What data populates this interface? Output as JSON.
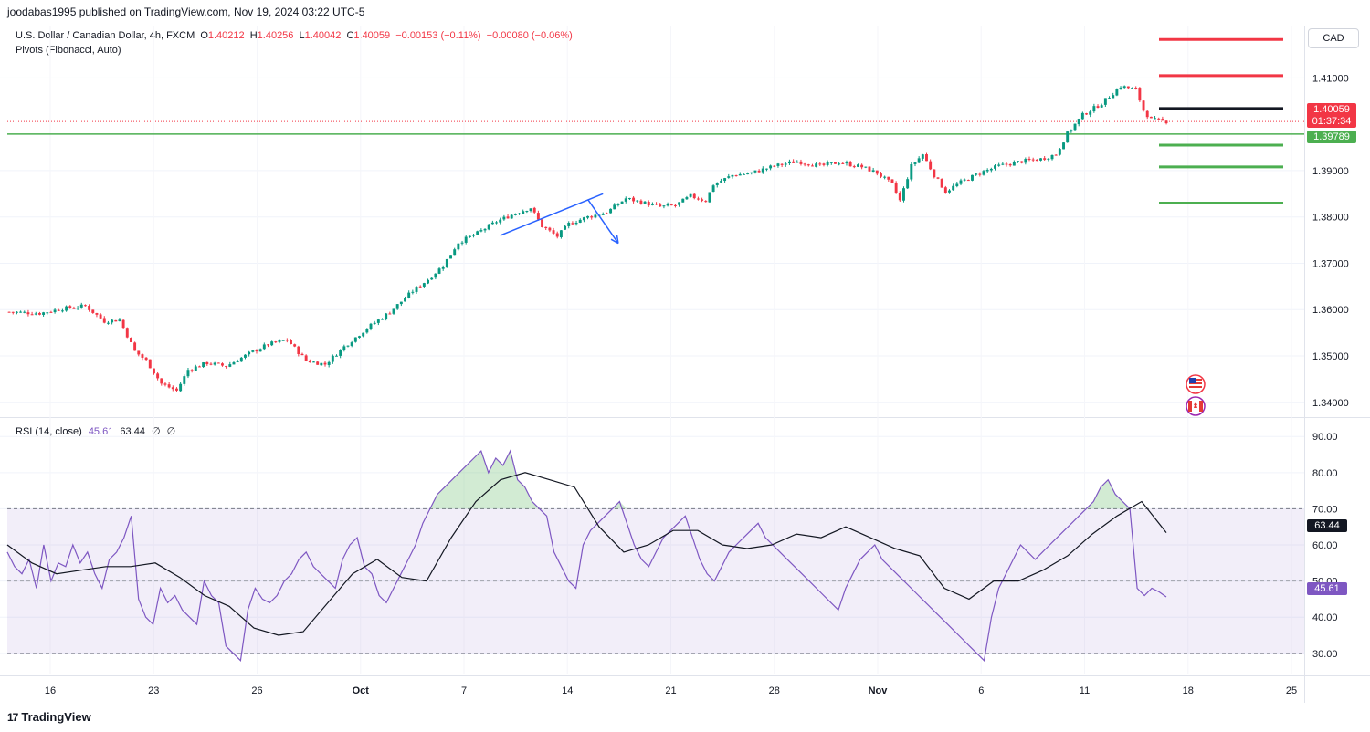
{
  "header": {
    "published_line": "joodabas1995 published on TradingView.com, Nov 19, 2024 03:22 UTC-5"
  },
  "legend": {
    "symbol": "U.S. Dollar / Canadian Dollar, 4h, FXCM",
    "o_label": "O",
    "o_value": "1.40212",
    "h_label": "H",
    "h_value": "1.40256",
    "l_label": "L",
    "l_value": "1.40042",
    "c_label": "C",
    "c_value": "1.40059",
    "change": "−0.00153 (−0.11%)",
    "change2": "−0.00080 (−0.06%)",
    "pivots_label": "Pivots (Fibonacci, Auto)",
    "rsi_label": "RSI (14, close)",
    "rsi_value": "45.61",
    "rsi_ma_value": "63.44",
    "rsi_extra1": "∅",
    "rsi_extra2": "∅"
  },
  "currency_button": "CAD",
  "price_tags": {
    "last_price": "1.40059",
    "countdown": "01:37:34",
    "green_line": "1.39789",
    "rsi_ma": "63.44",
    "rsi": "45.61"
  },
  "colors": {
    "up": "#089981",
    "down": "#f23645",
    "rsi": "#7e57c2",
    "rsi_ma": "#131722",
    "trend": "#2962ff",
    "hline": "#4caf50"
  },
  "brand": "TradingView",
  "chart_data": [
    {
      "type": "candlestick",
      "title": "U.S. Dollar / Canadian Dollar, 4h, FXCM",
      "y_ticks": [
        "1.41000",
        "1.39000",
        "1.38000",
        "1.37000",
        "1.36000",
        "1.35000",
        "1.34000"
      ],
      "x_ticks": [
        "16",
        "23",
        "26",
        "Oct",
        "7",
        "14",
        "21",
        "28",
        "Nov",
        "6",
        "11",
        "18",
        "25"
      ],
      "ylim": [
        1.3372,
        1.4213
      ],
      "close_path": [
        [
          0,
          1.3595
        ],
        [
          8,
          1.3592
        ],
        [
          14,
          1.3602
        ],
        [
          20,
          1.3608
        ],
        [
          25,
          1.3575
        ],
        [
          29,
          1.3578
        ],
        [
          33,
          1.351
        ],
        [
          36,
          1.349
        ],
        [
          40,
          1.344
        ],
        [
          44,
          1.3425
        ],
        [
          47,
          1.347
        ],
        [
          52,
          1.3485
        ],
        [
          57,
          1.3478
        ],
        [
          63,
          1.3505
        ],
        [
          68,
          1.3525
        ],
        [
          73,
          1.3535
        ],
        [
          78,
          1.349
        ],
        [
          83,
          1.3482
        ],
        [
          88,
          1.352
        ],
        [
          94,
          1.356
        ],
        [
          100,
          1.3595
        ],
        [
          106,
          1.364
        ],
        [
          110,
          1.3665
        ],
        [
          114,
          1.3695
        ],
        [
          118,
          1.3745
        ],
        [
          123,
          1.3765
        ],
        [
          128,
          1.379
        ],
        [
          133,
          1.3808
        ],
        [
          137,
          1.382
        ],
        [
          140,
          1.378
        ],
        [
          144,
          1.3758
        ],
        [
          147,
          1.3785
        ],
        [
          152,
          1.38
        ],
        [
          157,
          1.381
        ],
        [
          162,
          1.384
        ],
        [
          167,
          1.383
        ],
        [
          171,
          1.3822
        ],
        [
          175,
          1.3825
        ],
        [
          179,
          1.3845
        ],
        [
          183,
          1.3835
        ],
        [
          185,
          1.387
        ],
        [
          190,
          1.389
        ],
        [
          195,
          1.3895
        ],
        [
          201,
          1.391
        ],
        [
          207,
          1.392
        ],
        [
          213,
          1.391
        ],
        [
          218,
          1.3918
        ],
        [
          224,
          1.3908
        ],
        [
          228,
          1.3895
        ],
        [
          232,
          1.387
        ],
        [
          234,
          1.3835
        ],
        [
          237,
          1.391
        ],
        [
          240,
          1.3935
        ],
        [
          243,
          1.389
        ],
        [
          246,
          1.3855
        ],
        [
          250,
          1.3875
        ],
        [
          255,
          1.3895
        ],
        [
          260,
          1.391
        ],
        [
          266,
          1.392
        ],
        [
          271,
          1.3925
        ],
        [
          275,
          1.3935
        ],
        [
          278,
          1.398
        ],
        [
          282,
          1.402
        ],
        [
          287,
          1.4045
        ],
        [
          292,
          1.4082
        ],
        [
          296,
          1.4075
        ],
        [
          298,
          1.403
        ],
        [
          300,
          1.401
        ],
        [
          304,
          1.4006
        ]
      ],
      "pivot_levels": [
        {
          "value": 1.4183,
          "color": "red"
        },
        {
          "value": 1.4105,
          "color": "red"
        },
        {
          "value": 1.4034,
          "color": "black"
        },
        {
          "value": 1.3955,
          "color": "green"
        },
        {
          "value": 1.3908,
          "color": "green"
        },
        {
          "value": 1.383,
          "color": "green"
        }
      ],
      "hlines": [
        {
          "value": 1.39789,
          "label": "1.39789"
        }
      ],
      "last_price_line": 1.40059,
      "annotations": [
        {
          "type": "trendline",
          "from": [
            129,
            1.376
          ],
          "to": [
            156,
            1.385
          ]
        },
        {
          "type": "arrow",
          "from": [
            152,
            1.3838
          ],
          "to": [
            160,
            1.3743
          ]
        }
      ]
    },
    {
      "type": "line",
      "title": "RSI (14, close)",
      "y_ticks": [
        "90.00",
        "80.00",
        "70.00",
        "60.00",
        "50.00",
        "40.00",
        "30.00"
      ],
      "ylim": [
        24.4,
        94.6
      ],
      "bands": {
        "upper": 70,
        "middle": 50,
        "lower": 30
      },
      "series": [
        {
          "name": "RSI",
          "values": [
            58,
            54,
            52,
            56,
            48,
            60,
            50,
            55,
            54,
            60,
            55,
            58,
            52,
            48,
            56,
            58,
            62,
            68,
            45,
            40,
            38,
            48,
            44,
            46,
            42,
            40,
            38,
            50,
            46,
            44,
            32,
            30,
            28,
            42,
            48,
            45,
            44,
            46,
            50,
            52,
            56,
            58,
            54,
            52,
            50,
            48,
            56,
            60,
            62,
            54,
            52,
            46,
            44,
            48,
            52,
            56,
            60,
            66,
            70,
            74,
            76,
            78,
            80,
            82,
            84,
            86,
            80,
            84,
            82,
            86,
            78,
            76,
            72,
            70,
            68,
            58,
            54,
            50,
            48,
            60,
            64,
            66,
            68,
            70,
            72,
            66,
            60,
            56,
            54,
            58,
            62,
            64,
            66,
            68,
            62,
            56,
            52,
            50,
            54,
            58,
            60,
            62,
            64,
            66,
            62,
            60,
            58,
            56,
            54,
            52,
            50,
            48,
            46,
            44,
            42,
            48,
            52,
            56,
            58,
            60,
            56,
            54,
            52,
            50,
            48,
            46,
            44,
            42,
            40,
            38,
            36,
            34,
            32,
            30,
            28,
            40,
            48,
            52,
            56,
            60,
            58,
            56,
            58,
            60,
            62,
            64,
            66,
            68,
            70,
            72,
            76,
            78,
            74,
            72,
            70,
            48,
            46,
            48,
            47,
            45.6
          ]
        },
        {
          "name": "RSI-based MA",
          "values": [
            60,
            55,
            52,
            53,
            54,
            54,
            55,
            51,
            46,
            43,
            37,
            35,
            36,
            44,
            52,
            56,
            51,
            50,
            62,
            72,
            78,
            80,
            78,
            76,
            65,
            58,
            60,
            64,
            64,
            60,
            59,
            60,
            63,
            62,
            65,
            62,
            59,
            57,
            48,
            45,
            50,
            50,
            53,
            57,
            63,
            68,
            72,
            63.4
          ]
        }
      ]
    }
  ]
}
